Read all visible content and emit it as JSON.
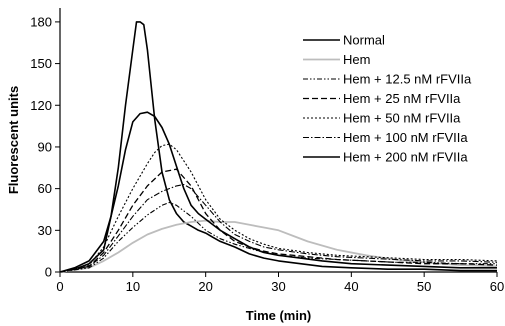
{
  "chart_data": {
    "type": "line",
    "xlabel": "Time (min)",
    "ylabel": "Fluorescent units",
    "xlim": [
      0,
      60
    ],
    "ylim": [
      0,
      190
    ],
    "xticks": [
      "0",
      "10",
      "20",
      "30",
      "40",
      "50",
      "60"
    ],
    "yticks": [
      "0",
      "30",
      "60",
      "90",
      "120",
      "150",
      "180"
    ],
    "legend_position": "top-right",
    "grid": false,
    "series": [
      {
        "name": "Normal",
        "color": "#000000",
        "style": "solid",
        "width": 1.6,
        "x": [
          0,
          2,
          4,
          6,
          7,
          8,
          9,
          10,
          10.5,
          11,
          11.5,
          12,
          13,
          14,
          15,
          16,
          17,
          18,
          19,
          20,
          21,
          22,
          24,
          26,
          28,
          30,
          33,
          36,
          40,
          45,
          50,
          55,
          60
        ],
        "y": [
          0,
          2,
          6,
          16,
          40,
          75,
          120,
          160,
          180,
          180,
          178,
          160,
          110,
          72,
          52,
          42,
          36,
          33,
          30,
          28,
          25,
          22,
          18,
          13,
          10,
          8,
          6,
          4,
          3,
          2,
          2,
          1,
          1
        ]
      },
      {
        "name": "Hem",
        "color": "#bdbdbd",
        "style": "solid",
        "width": 1.8,
        "x": [
          0,
          4,
          6,
          8,
          10,
          12,
          14,
          16,
          18,
          20,
          22,
          24,
          26,
          28,
          30,
          32,
          34,
          38,
          42,
          46,
          50,
          55,
          60
        ],
        "y": [
          0,
          3,
          8,
          14,
          21,
          27,
          31,
          34,
          36,
          37,
          36,
          36,
          34,
          32,
          30,
          26,
          22,
          16,
          12,
          9,
          7,
          5,
          4
        ]
      },
      {
        "name": "Hem + 12.5 nM rFVIIa",
        "color": "#000000",
        "style": "dashdotdot",
        "width": 1.1,
        "x": [
          0,
          4,
          6,
          8,
          10,
          12,
          14,
          15,
          16,
          18,
          20,
          22,
          24,
          26,
          28,
          30,
          34,
          38,
          42,
          46,
          50,
          55,
          60
        ],
        "y": [
          0,
          3,
          10,
          22,
          32,
          41,
          48,
          50,
          48,
          40,
          30,
          24,
          20,
          17,
          14,
          12,
          10,
          9,
          8,
          7,
          7,
          6,
          6
        ]
      },
      {
        "name": "Hem + 25 nM rFVIIa",
        "color": "#000000",
        "style": "dashed",
        "width": 1.3,
        "x": [
          0,
          4,
          6,
          8,
          10,
          12,
          14,
          16,
          18,
          20,
          22,
          24,
          26,
          28,
          30,
          34,
          38,
          42,
          46,
          50,
          55,
          60
        ],
        "y": [
          0,
          4,
          14,
          30,
          48,
          62,
          72,
          74,
          62,
          42,
          30,
          22,
          18,
          15,
          13,
          11,
          9,
          8,
          7,
          6,
          6,
          5
        ]
      },
      {
        "name": "Hem + 50 nM rFVIIa",
        "color": "#000000",
        "style": "dotted",
        "width": 1.1,
        "x": [
          0,
          4,
          6,
          8,
          10,
          12,
          13,
          14,
          15,
          16,
          18,
          20,
          22,
          24,
          26,
          28,
          30,
          34,
          38,
          42,
          46,
          50,
          55,
          60
        ],
        "y": [
          0,
          5,
          18,
          40,
          60,
          78,
          86,
          91,
          92,
          88,
          72,
          52,
          38,
          30,
          24,
          20,
          17,
          14,
          12,
          11,
          10,
          9,
          9,
          8
        ]
      },
      {
        "name": "Hem + 100 nM rFVIIa",
        "color": "#000000",
        "style": "dashdot",
        "width": 1.1,
        "x": [
          0,
          4,
          6,
          8,
          10,
          12,
          14,
          16,
          17,
          18,
          20,
          22,
          24,
          26,
          28,
          30,
          34,
          38,
          42,
          46,
          50,
          55,
          60
        ],
        "y": [
          0,
          4,
          12,
          26,
          40,
          52,
          58,
          62,
          63,
          60,
          48,
          36,
          27,
          22,
          18,
          16,
          13,
          11,
          10,
          9,
          8,
          8,
          7
        ]
      },
      {
        "name": "Hem + 200 nM rFVIIa",
        "color": "#000000",
        "style": "solid",
        "width": 1.6,
        "x": [
          0,
          2,
          4,
          6,
          7,
          8,
          9,
          10,
          11,
          12,
          13,
          14,
          15,
          16,
          17,
          18,
          19,
          20,
          22,
          24,
          26,
          28,
          30,
          33,
          36,
          40,
          45,
          50,
          55,
          60
        ],
        "y": [
          0,
          3,
          8,
          22,
          40,
          62,
          88,
          108,
          114,
          115,
          112,
          104,
          92,
          76,
          60,
          48,
          42,
          38,
          30,
          24,
          18,
          14,
          12,
          10,
          8,
          6,
          5,
          4,
          3,
          3
        ]
      }
    ]
  }
}
